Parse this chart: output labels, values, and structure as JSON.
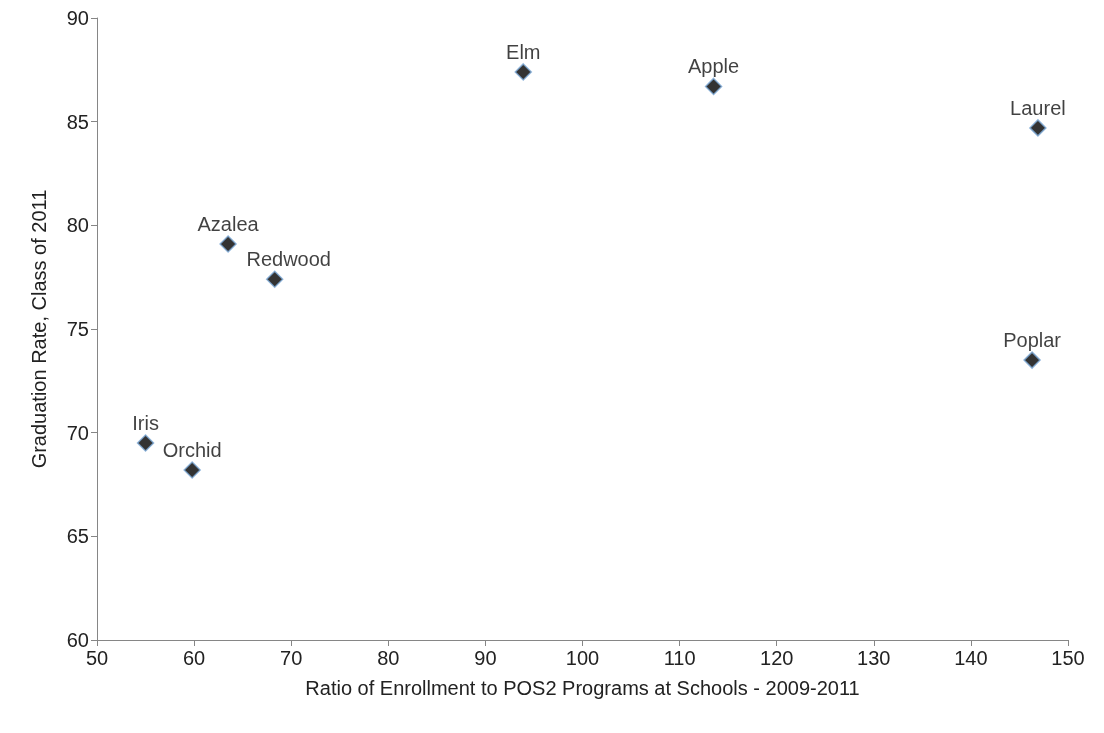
{
  "chart_data": {
    "type": "scatter",
    "xlabel": "Ratio of Enrollment to POS2 Programs at Schools - 2009-2011",
    "ylabel": "Graduation Rate, Class of 2011",
    "x": [
      55.0,
      59.8,
      63.5,
      68.3,
      93.9,
      113.5,
      146.9,
      146.3
    ],
    "values": [
      69.5,
      68.2,
      79.1,
      77.4,
      87.4,
      86.7,
      84.7,
      73.5
    ],
    "color": "#000000",
    "marker": "diamond",
    "grid": false,
    "xlim": [
      50,
      150
    ],
    "xticks": [
      50,
      60,
      70,
      80,
      90,
      100,
      110,
      120,
      130,
      140,
      150
    ],
    "ylim": [
      60,
      90
    ],
    "yticks": [
      60,
      65,
      70,
      75,
      80,
      85,
      90
    ],
    "annotations": [
      {
        "text": "Iris",
        "x": 55.0,
        "y": 69.5
      },
      {
        "text": "Orchid",
        "x": 59.8,
        "y": 68.2
      },
      {
        "text": "Azalea",
        "x": 63.5,
        "y": 79.1
      },
      {
        "text": "Redwood",
        "x": 68.3,
        "y": 77.4
      },
      {
        "text": "Elm",
        "x": 93.9,
        "y": 87.4
      },
      {
        "text": "Apple",
        "x": 113.5,
        "y": 86.7
      },
      {
        "text": "Laurel",
        "x": 146.9,
        "y": 84.7
      },
      {
        "text": "Poplar",
        "x": 146.3,
        "y": 73.5
      }
    ]
  }
}
